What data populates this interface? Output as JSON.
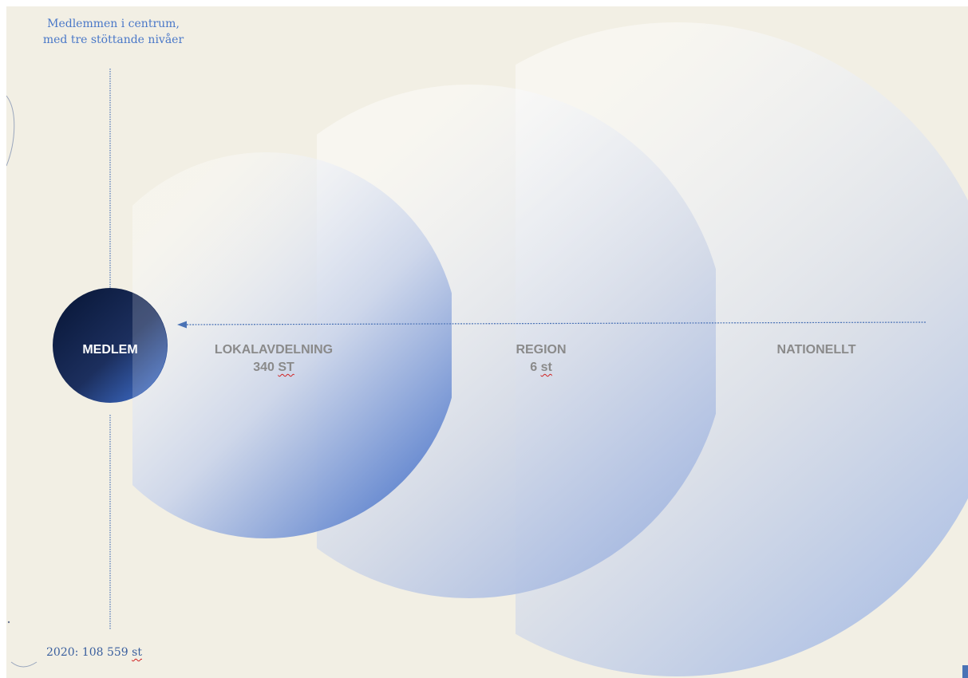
{
  "title": {
    "line1": "Medlemmen i centrum,",
    "line2": "med tre stöttande nivåer"
  },
  "levels": {
    "medlem": {
      "label": "MEDLEM"
    },
    "lokalavdelning": {
      "label": "LOKALAVDELNING",
      "count": "340",
      "unit": "ST"
    },
    "region": {
      "label": "REGION",
      "count": "6",
      "unit": "st"
    },
    "nationellt": {
      "label": "NATIONELLT"
    }
  },
  "member_count": {
    "prefix": "2020: 108 559 ",
    "unit": "st"
  },
  "colors": {
    "background": "#f2efe4",
    "accent_blue": "#4a78c8",
    "member_circle_dark": "#0b1a3d",
    "member_circle_light": "#3a67c0",
    "level_text": "#8a8a8a"
  }
}
